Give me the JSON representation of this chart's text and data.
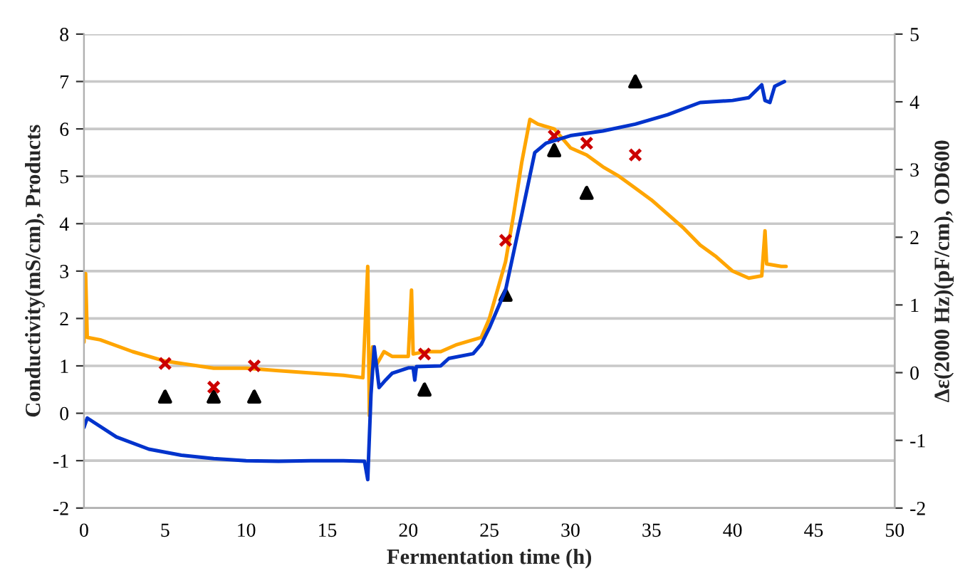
{
  "chart_data": {
    "type": "line",
    "xlabel": "Fermentation time (h)",
    "ylabel": "Conductivity(mS/cm), Products",
    "y2label": "Δε(2000 Hz)(pF/cm), OD600",
    "xlim": [
      0,
      50
    ],
    "xticks": [
      0,
      5,
      10,
      15,
      20,
      25,
      30,
      35,
      40,
      45,
      50
    ],
    "ylim": [
      -2,
      8
    ],
    "yticks": [
      -2,
      -1,
      0,
      1,
      2,
      3,
      4,
      5,
      6,
      7,
      8
    ],
    "y2lim": [
      -2,
      5
    ],
    "y2ticks": [
      -2,
      -1,
      0,
      1,
      2,
      3,
      4,
      5
    ],
    "grid": "y",
    "legend": false,
    "series": [
      {
        "color": "#ffa500",
        "marker": "none",
        "x": [
          0,
          0.1,
          0.2,
          1,
          3,
          5,
          8,
          10,
          12,
          14,
          16,
          17.2,
          17.5,
          17.6,
          17.8,
          18,
          18.5,
          19,
          20,
          20.2,
          20.3,
          21,
          22,
          23,
          24,
          24.5,
          25,
          26,
          26.5,
          27,
          27.5,
          28,
          29,
          30,
          31,
          32,
          33,
          34,
          35,
          36,
          37,
          38,
          39,
          40,
          41,
          41.8,
          42,
          42.1,
          43,
          43.3
        ],
        "values": [
          1.5,
          2.95,
          1.6,
          1.55,
          1.3,
          1.1,
          0.95,
          0.95,
          0.9,
          0.85,
          0.8,
          0.75,
          3.1,
          -0.05,
          1.4,
          1.0,
          1.3,
          1.2,
          1.2,
          2.6,
          1.25,
          1.3,
          1.3,
          1.45,
          1.55,
          1.6,
          2.0,
          3.2,
          4.2,
          5.3,
          6.2,
          6.1,
          6.0,
          5.6,
          5.45,
          5.2,
          5.0,
          4.75,
          4.5,
          4.2,
          3.9,
          3.55,
          3.3,
          3.0,
          2.85,
          2.9,
          3.85,
          3.15,
          3.1,
          3.1
        ]
      },
      {
        "axis": "y2",
        "color": "#0033cc",
        "marker": "none",
        "x": [
          0,
          0.2,
          2,
          4,
          6,
          8,
          10,
          12,
          14,
          16,
          17.3,
          17.5,
          17.7,
          17.9,
          18.2,
          18.6,
          19,
          20,
          20.3,
          20.4,
          20.5,
          22,
          22.5,
          24,
          24.5,
          25,
          26,
          27,
          27.8,
          28.5,
          30,
          32,
          34,
          36,
          38,
          40,
          41,
          41.8,
          42,
          42.3,
          42.6,
          43.2
        ],
        "values": [
          -0.81,
          -0.67,
          -0.95,
          -1.13,
          -1.22,
          -1.27,
          -1.3,
          -1.31,
          -1.3,
          -1.3,
          -1.31,
          -1.58,
          -0.32,
          0.38,
          -0.22,
          -0.11,
          -0.01,
          0.07,
          0.07,
          -0.11,
          0.09,
          0.1,
          0.21,
          0.28,
          0.42,
          0.66,
          1.22,
          2.34,
          3.25,
          3.39,
          3.5,
          3.57,
          3.67,
          3.81,
          3.99,
          4.02,
          4.06,
          4.25,
          4.02,
          3.99,
          4.23,
          4.3
        ]
      },
      {
        "type": "scatter",
        "color": "#000000",
        "marker": "triangle",
        "x": [
          5,
          8,
          10.5,
          21,
          26,
          29,
          31,
          34
        ],
        "values": [
          0.35,
          0.35,
          0.35,
          0.5,
          2.5,
          5.55,
          4.65,
          7.0
        ]
      },
      {
        "type": "scatter",
        "color": "#cc0000",
        "marker": "cross",
        "x": [
          5,
          8,
          10.5,
          21,
          26,
          29,
          31,
          34
        ],
        "values": [
          1.05,
          0.55,
          1.0,
          1.25,
          3.65,
          5.85,
          5.7,
          5.45
        ]
      }
    ]
  }
}
